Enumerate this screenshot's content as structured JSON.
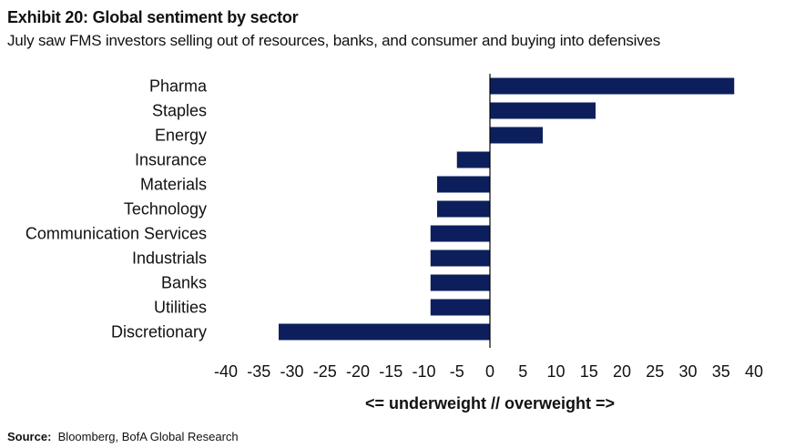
{
  "header": {
    "title": "Exhibit 20: Global sentiment by sector",
    "subtitle": "July saw FMS investors selling out of resources, banks, and consumer and buying into defensives"
  },
  "footer": {
    "source_label": "Source:",
    "source_text": "Bloomberg,  BofA Global Research"
  },
  "chart_data": {
    "type": "bar",
    "orientation": "horizontal",
    "title": "Exhibit 20: Global sentiment by sector",
    "subtitle": "July saw FMS investors selling out of resources, banks, and consumer and buying into defensives",
    "xlabel": "<= underweight // overweight =>",
    "ylabel": "",
    "categories": [
      "Pharma",
      "Staples",
      "Energy",
      "Insurance",
      "Materials",
      "Technology",
      "Communication Services",
      "Industrials",
      "Banks",
      "Utilities",
      "Discretionary"
    ],
    "values": [
      37,
      16,
      8,
      -5,
      -8,
      -8,
      -9,
      -9,
      -9,
      -9,
      -32
    ],
    "xlim": [
      -40,
      40
    ],
    "xticks": [
      "-40",
      "-35",
      "-30",
      "-25",
      "-20",
      "-15",
      "-10",
      "-5",
      "0",
      "5",
      "10",
      "15",
      "20",
      "25",
      "30",
      "35",
      "40"
    ],
    "bar_color": "#0c1f5c",
    "grid": false,
    "legend": "none"
  }
}
